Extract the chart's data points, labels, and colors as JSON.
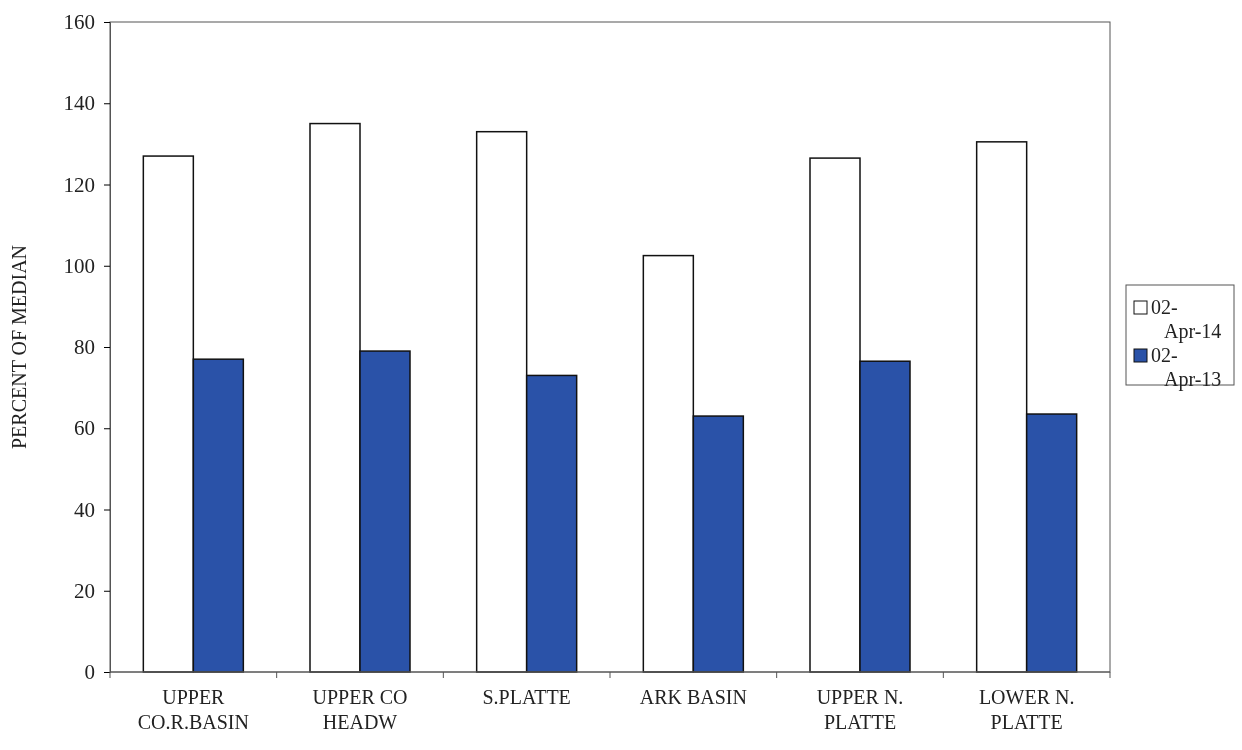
{
  "chart_data": {
    "type": "bar",
    "ylabel": "PERCENT OF MEDIAN",
    "categories": [
      "UPPER\nCO.R.BASIN",
      "UPPER CO\nHEADW",
      "S.PLATTE",
      "ARK BASIN",
      "UPPER N.\nPLATTE",
      "LOWER N.\nPLATTE"
    ],
    "series": [
      {
        "name": "02-Apr-14",
        "color": "#ffffff",
        "values": [
          127,
          135,
          133,
          102.5,
          126.5,
          130.5
        ]
      },
      {
        "name": "02-Apr-13",
        "color": "#2a52a8",
        "values": [
          77,
          79,
          73,
          63,
          76.5,
          63.5
        ]
      }
    ],
    "ylim": [
      0,
      160
    ],
    "yticks": [
      0,
      20,
      40,
      60,
      80,
      100,
      120,
      140,
      160
    ],
    "grid": false,
    "legend": "right"
  }
}
